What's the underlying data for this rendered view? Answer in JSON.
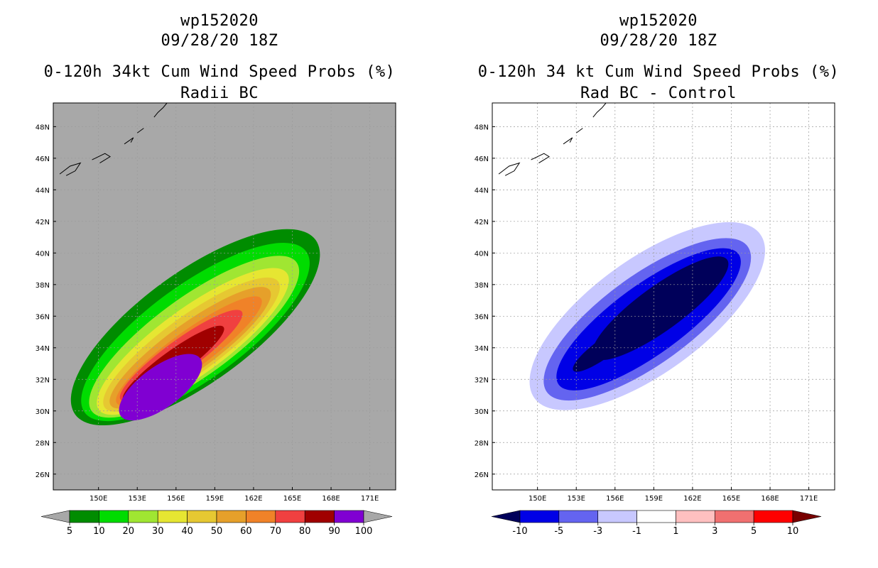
{
  "chart_data": [
    {
      "type": "heatmap",
      "storm": "wp152020",
      "datetime": "09/28/20 18Z",
      "title": "0-120h 34kt Cum Wind Speed Probs (%)",
      "subtitle": "Radii BC",
      "xlim": [
        146.5,
        173.0
      ],
      "ylim": [
        25.0,
        49.5
      ],
      "xticks": [
        "150E",
        "153E",
        "156E",
        "159E",
        "162E",
        "165E",
        "168E",
        "171E"
      ],
      "xtick_values": [
        150,
        153,
        156,
        159,
        162,
        165,
        168,
        171
      ],
      "yticks": [
        "26N",
        "28N",
        "30N",
        "32N",
        "34N",
        "36N",
        "38N",
        "40N",
        "42N",
        "44N",
        "46N",
        "48N"
      ],
      "ytick_values": [
        26,
        28,
        30,
        32,
        34,
        36,
        38,
        40,
        42,
        44,
        46,
        48
      ],
      "grid": true,
      "background_color": "#a8a8a8",
      "colorbar": {
        "labels": [
          "5",
          "10",
          "20",
          "30",
          "40",
          "50",
          "60",
          "70",
          "80",
          "90",
          "100"
        ],
        "colors": [
          "#008c00",
          "#00dc00",
          "#a0e632",
          "#e6e632",
          "#e6c832",
          "#e6a02a",
          "#f08228",
          "#f04040",
          "#a00000",
          "#8000d2"
        ],
        "left_arrow_color": "#a8a8a8",
        "right_arrow_color": "#a8a8a8"
      },
      "levels": [
        {
          "label": "5",
          "color": "#008c00",
          "center": [
            157.5,
            35.3
          ],
          "half_length": 11.5,
          "half_width": 3.5
        },
        {
          "label": "10",
          "color": "#00dc00",
          "center": [
            157.5,
            35.0
          ],
          "half_length": 10.6,
          "half_width": 3.0
        },
        {
          "label": "20",
          "color": "#a0e632",
          "center": [
            157.4,
            34.7
          ],
          "half_length": 9.8,
          "half_width": 2.5
        },
        {
          "label": "30",
          "color": "#e6e632",
          "center": [
            157.3,
            34.4
          ],
          "half_length": 9.0,
          "half_width": 2.1
        },
        {
          "label": "40",
          "color": "#e6c832",
          "center": [
            157.2,
            34.2
          ],
          "half_length": 8.3,
          "half_width": 1.8
        },
        {
          "label": "50",
          "color": "#e6a02a",
          "center": [
            157.1,
            34.0
          ],
          "half_length": 7.6,
          "half_width": 1.5
        },
        {
          "label": "60",
          "color": "#f08228",
          "center": [
            157.0,
            33.8
          ],
          "half_length": 6.9,
          "half_width": 1.2
        },
        {
          "label": "70",
          "color": "#f04040",
          "center": [
            156.4,
            33.5
          ],
          "half_length": 5.8,
          "half_width": 1.0
        },
        {
          "label": "80",
          "color": "#a00000",
          "center": [
            155.8,
            33.0
          ],
          "half_length": 4.8,
          "half_width": 0.8
        },
        {
          "label": "90",
          "color": "#8000d2",
          "center": [
            154.8,
            31.5
          ],
          "half_length": 3.8,
          "half_width": 1.3
        }
      ]
    },
    {
      "type": "heatmap",
      "storm": "wp152020",
      "datetime": "09/28/20 18Z",
      "title": "0-120h 34 kt Cum Wind Speed Probs (%)",
      "subtitle": "Rad BC - Control",
      "xlim": [
        146.5,
        173.0
      ],
      "ylim": [
        25.0,
        49.5
      ],
      "xticks": [
        "150E",
        "153E",
        "156E",
        "159E",
        "162E",
        "165E",
        "168E",
        "171E"
      ],
      "xtick_values": [
        150,
        153,
        156,
        159,
        162,
        165,
        168,
        171
      ],
      "yticks": [
        "26N",
        "28N",
        "30N",
        "32N",
        "34N",
        "36N",
        "38N",
        "40N",
        "42N",
        "44N",
        "46N",
        "48N"
      ],
      "ytick_values": [
        26,
        28,
        30,
        32,
        34,
        36,
        38,
        40,
        42,
        44,
        46,
        48
      ],
      "grid": true,
      "background_color": "#ffffff",
      "colorbar": {
        "labels": [
          "-10",
          "-5",
          "-3",
          "-1",
          "1",
          "3",
          "5",
          "10"
        ],
        "colors": [
          "#0000e6",
          "#6464f0",
          "#c8c8ff",
          "#ffffff",
          "#ffc0c0",
          "#f07070",
          "#ff0000"
        ],
        "left_arrow_color": "#00005a",
        "right_arrow_color": "#780000"
      },
      "levels": [
        {
          "label": "-1",
          "color": "#c8c8ff",
          "center": [
            158.5,
            36.0
          ],
          "half_length": 10.8,
          "half_width": 3.6
        },
        {
          "label": "-3",
          "color": "#6464f0",
          "center": [
            158.5,
            35.8
          ],
          "half_length": 9.6,
          "half_width": 2.8
        },
        {
          "label": "-5",
          "color": "#0000e6",
          "center": [
            158.6,
            35.8
          ],
          "half_length": 8.6,
          "half_width": 2.2
        },
        {
          "label": "-10",
          "color": "#00005a",
          "center": [
            159.5,
            36.5
          ],
          "half_length": 6.4,
          "half_width": 1.4
        },
        {
          "label": "-10b",
          "color": "#00005a",
          "center": [
            155.2,
            34.0
          ],
          "half_length": 3.0,
          "half_width": 0.6
        }
      ]
    }
  ]
}
